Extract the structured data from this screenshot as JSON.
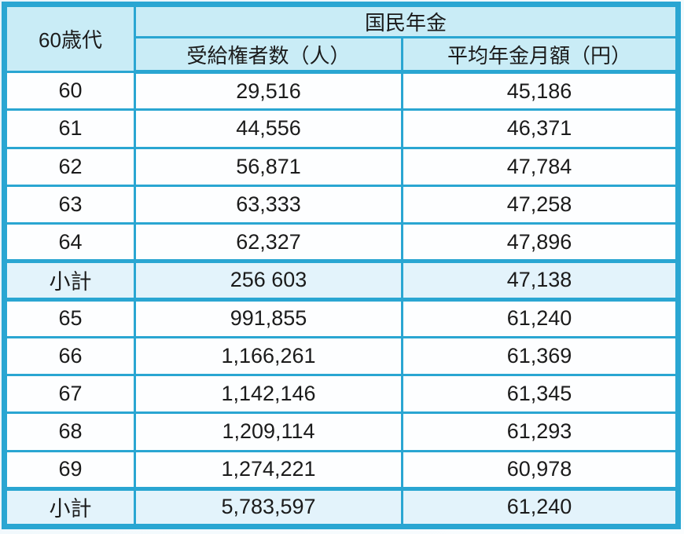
{
  "table": {
    "age_group_header": "60歳代",
    "group_header": "国民年金",
    "col_header_recipients": "受給権者数（人）",
    "col_header_avg_amount": "平均年金月額（円）",
    "rows": [
      {
        "age": "60",
        "recipients": "29,516",
        "avg_amount": "45,186",
        "is_subtotal": false
      },
      {
        "age": "61",
        "recipients": "44,556",
        "avg_amount": "46,371",
        "is_subtotal": false
      },
      {
        "age": "62",
        "recipients": "56,871",
        "avg_amount": "47,784",
        "is_subtotal": false
      },
      {
        "age": "63",
        "recipients": "63,333",
        "avg_amount": "47,258",
        "is_subtotal": false
      },
      {
        "age": "64",
        "recipients": "62,327",
        "avg_amount": "47,896",
        "is_subtotal": false
      },
      {
        "age": "小計",
        "recipients": "256 603",
        "avg_amount": "47,138",
        "is_subtotal": true
      },
      {
        "age": "65",
        "recipients": "991,855",
        "avg_amount": "61,240",
        "is_subtotal": false
      },
      {
        "age": "66",
        "recipients": "1,166,261",
        "avg_amount": "61,369",
        "is_subtotal": false
      },
      {
        "age": "67",
        "recipients": "1,142,146",
        "avg_amount": "61,345",
        "is_subtotal": false
      },
      {
        "age": "68",
        "recipients": "1,209,114",
        "avg_amount": "61,293",
        "is_subtotal": false
      },
      {
        "age": "69",
        "recipients": "1,274,221",
        "avg_amount": "60,978",
        "is_subtotal": false
      },
      {
        "age": "小計",
        "recipients": "5,783,597",
        "avg_amount": "61,240",
        "is_subtotal": true
      }
    ],
    "colors": {
      "border": "#2aa6d2",
      "header_bg": "#c9ecf6",
      "subtotal_bg": "#e3f3fb",
      "row_bg": "#fdfeff",
      "text": "#1b1b1b"
    }
  },
  "chart_data": {
    "type": "table",
    "title": "国民年金",
    "columns": [
      "60歳代",
      "受給権者数（人）",
      "平均年金月額（円）"
    ],
    "rows": [
      [
        "60",
        "29,516",
        "45,186"
      ],
      [
        "61",
        "44,556",
        "46,371"
      ],
      [
        "62",
        "56,871",
        "47,784"
      ],
      [
        "63",
        "63,333",
        "47,258"
      ],
      [
        "64",
        "62,327",
        "47,896"
      ],
      [
        "小計",
        "256 603",
        "47,138"
      ],
      [
        "65",
        "991,855",
        "61,240"
      ],
      [
        "66",
        "1,166,261",
        "61,369"
      ],
      [
        "67",
        "1,142,146",
        "61,345"
      ],
      [
        "68",
        "1,209,114",
        "61,293"
      ],
      [
        "69",
        "1,274,221",
        "60,978"
      ],
      [
        "小計",
        "5,783,597",
        "61,240"
      ]
    ],
    "layout_hints": {
      "header_spans": "国民年金 spans the two value columns; 60歳代 spans both header rows",
      "subtotal_rows": [
        5,
        11
      ],
      "grid": "on"
    }
  }
}
